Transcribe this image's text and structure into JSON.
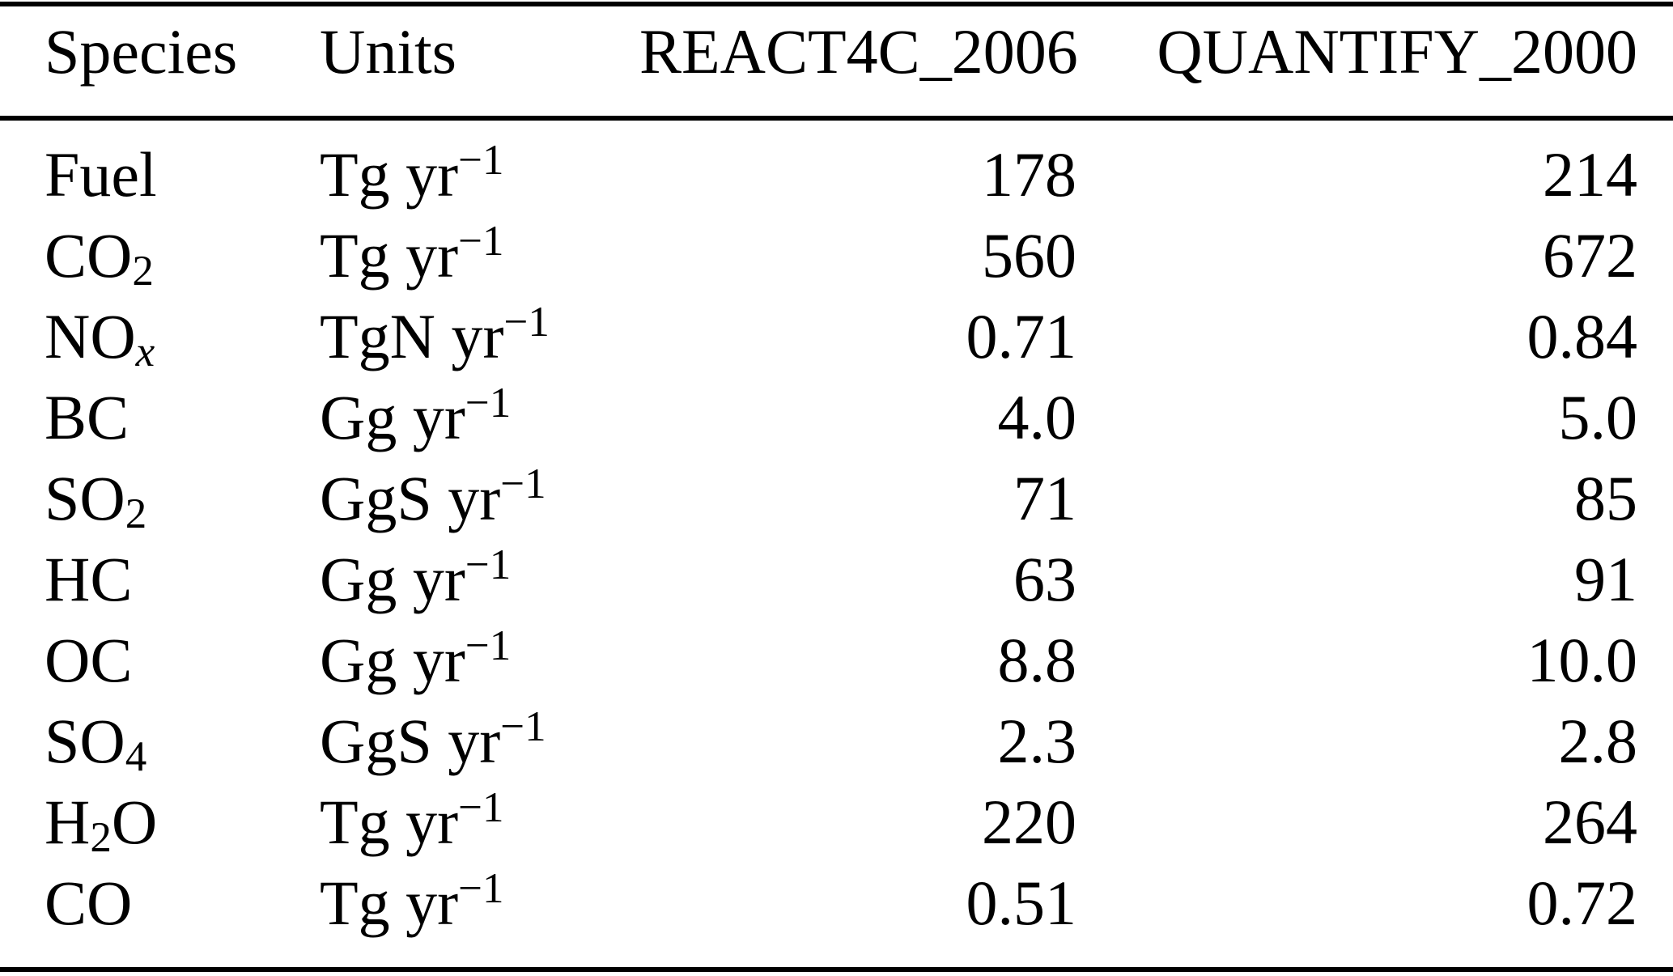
{
  "colors": {
    "background": "#ffffff",
    "text": "#000000",
    "rule": "#000000"
  },
  "table": {
    "columns": [
      "Species",
      "Units",
      "REACT4C_2006",
      "QUANTIFY_2000"
    ],
    "rows": [
      {
        "species": [
          {
            "t": "Fuel"
          }
        ],
        "units": [
          {
            "t": "Tg yr"
          },
          {
            "t": "−1",
            "sup": true
          }
        ],
        "react4c_2006": "178",
        "quantify_2000": "214"
      },
      {
        "species": [
          {
            "t": "CO"
          },
          {
            "t": "2",
            "sub": true
          }
        ],
        "units": [
          {
            "t": "Tg yr"
          },
          {
            "t": "−1",
            "sup": true
          }
        ],
        "react4c_2006": "560",
        "quantify_2000": "672"
      },
      {
        "species": [
          {
            "t": "NO"
          },
          {
            "t": "x",
            "sub": true,
            "italic": true
          }
        ],
        "units": [
          {
            "t": "TgN yr"
          },
          {
            "t": "−1",
            "sup": true
          }
        ],
        "react4c_2006": "0.71",
        "quantify_2000": "0.84"
      },
      {
        "species": [
          {
            "t": "BC"
          }
        ],
        "units": [
          {
            "t": "Gg yr"
          },
          {
            "t": "−1",
            "sup": true
          }
        ],
        "react4c_2006": "4.0",
        "quantify_2000": "5.0"
      },
      {
        "species": [
          {
            "t": "SO"
          },
          {
            "t": "2",
            "sub": true
          }
        ],
        "units": [
          {
            "t": "GgS yr"
          },
          {
            "t": "−1",
            "sup": true
          }
        ],
        "react4c_2006": "71",
        "quantify_2000": "85"
      },
      {
        "species": [
          {
            "t": "HC"
          }
        ],
        "units": [
          {
            "t": "Gg yr"
          },
          {
            "t": "−1",
            "sup": true
          }
        ],
        "react4c_2006": "63",
        "quantify_2000": "91"
      },
      {
        "species": [
          {
            "t": "OC"
          }
        ],
        "units": [
          {
            "t": "Gg yr"
          },
          {
            "t": "−1",
            "sup": true
          }
        ],
        "react4c_2006": "8.8",
        "quantify_2000": "10.0"
      },
      {
        "species": [
          {
            "t": "SO"
          },
          {
            "t": "4",
            "sub": true
          }
        ],
        "units": [
          {
            "t": "GgS yr"
          },
          {
            "t": "−1",
            "sup": true
          }
        ],
        "react4c_2006": "2.3",
        "quantify_2000": "2.8"
      },
      {
        "species": [
          {
            "t": "H"
          },
          {
            "t": "2",
            "sub": true
          },
          {
            "t": "O"
          }
        ],
        "units": [
          {
            "t": "Tg yr"
          },
          {
            "t": "−1",
            "sup": true
          }
        ],
        "react4c_2006": "220",
        "quantify_2000": "264"
      },
      {
        "species": [
          {
            "t": "CO"
          }
        ],
        "units": [
          {
            "t": "Tg yr"
          },
          {
            "t": "−1",
            "sup": true
          }
        ],
        "react4c_2006": "0.51",
        "quantify_2000": "0.72"
      }
    ]
  }
}
